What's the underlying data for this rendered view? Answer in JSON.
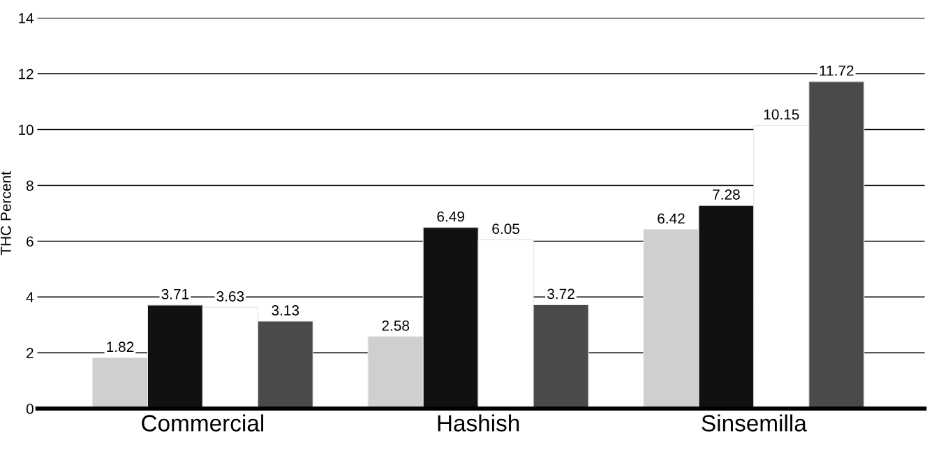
{
  "chart_data": {
    "type": "bar",
    "ylabel": "THC Percent",
    "categories": [
      "Commercial",
      "Hashish",
      "Sinsemilla"
    ],
    "series": [
      {
        "color": "#cfcfcf",
        "values": [
          1.82,
          2.58,
          6.42
        ]
      },
      {
        "color": "#111111",
        "values": [
          3.71,
          6.49,
          7.28
        ]
      },
      {
        "color": "#ffffff",
        "values": [
          3.63,
          6.05,
          10.15
        ]
      },
      {
        "color": "#4a4a4a",
        "values": [
          3.13,
          3.72,
          11.72
        ]
      }
    ],
    "ylim": [
      0,
      14
    ],
    "yticks": [
      0,
      2,
      4,
      6,
      8,
      10,
      12,
      14
    ],
    "grid": "y",
    "data_labels": true
  }
}
